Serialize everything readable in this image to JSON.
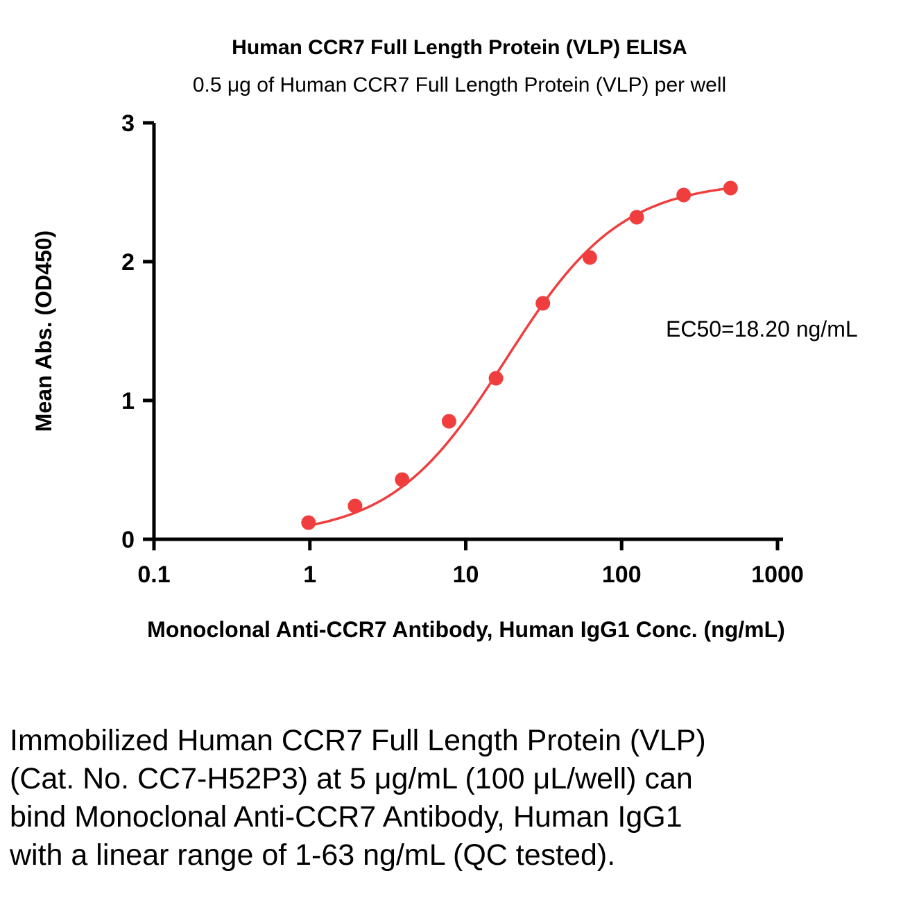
{
  "figure": {
    "title": "Human CCR7 Full Length Protein (VLP) ELISA",
    "subtitle": "0.5 μg of Human CCR7 Full Length Protein (VLP) per well",
    "caption": "Immobilized Human CCR7 Full Length Protein (VLP) (Cat. No. CC7-H52P3) at 5 μg/mL (100 μL/well) can bind Monoclonal Anti-CCR7 Antibody, Human IgG1 with a linear range of 1-63 ng/mL (QC tested)."
  },
  "chart_data": {
    "type": "scatter",
    "title": "Human CCR7 Full Length Protein (VLP) ELISA",
    "subtitle": "0.5 μg of Human CCR7 Full Length Protein (VLP) per well",
    "xlabel": "Monoclonal Anti-CCR7 Antibody, Human IgG1 Conc. (ng/mL)",
    "ylabel": "Mean Abs. (OD450)",
    "x_scale": "log10",
    "xlim": [
      0.1,
      1000
    ],
    "ylim": [
      0,
      3
    ],
    "x_ticks": [
      0.1,
      1,
      10,
      100,
      1000
    ],
    "x_tick_labels": [
      "0.1",
      "1",
      "10",
      "100",
      "1000"
    ],
    "y_ticks": [
      0,
      1,
      2,
      3
    ],
    "y_tick_labels": [
      "0",
      "1",
      "2",
      "3"
    ],
    "grid": false,
    "legend": false,
    "annotation": "EC50=18.20 ng/mL",
    "ec50_ng_ml": 18.2,
    "axis_color": "#000000",
    "series": [
      {
        "name": "Human CCR7 Full Length Protein (VLP)",
        "color": "#F03E3E",
        "x": [
          0.98,
          1.95,
          3.91,
          7.81,
          15.63,
          31.25,
          62.5,
          125,
          250,
          500
        ],
        "y": [
          0.12,
          0.24,
          0.43,
          0.85,
          1.16,
          1.7,
          2.03,
          2.32,
          2.48,
          2.53
        ]
      }
    ],
    "fit": {
      "type": "4PL",
      "bottom": 0.02,
      "top": 2.58,
      "ec50": 18.2,
      "hill": 1.18
    }
  }
}
